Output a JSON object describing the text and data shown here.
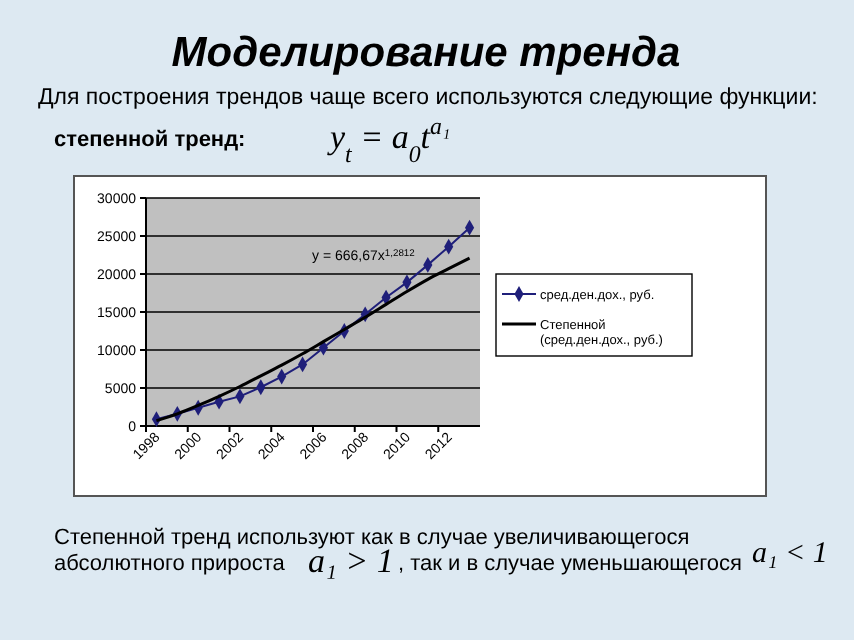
{
  "chart_data": {
    "type": "line",
    "title": "Моделирование тренда",
    "subtitle": "Для построения трендов чаще всего используются следующие функции:",
    "annotations": [
      "степенной тренд:",
      "y$_{t}$ = a$_{0}$t$^{a₁}$",
      "y = 666,67x$^{1,2812}$",
      "Степенной тренд используют как в случае увеличивающегося",
      "абсолютного прироста",
      "a₁ > 1",
      ", так и в случае уменьшающегося",
      "a₁ < 1"
    ],
    "categories": [
      "1998",
      null,
      "2000",
      null,
      "2002",
      null,
      "2004",
      null,
      "2006",
      null,
      "2008",
      null,
      "2010",
      null,
      "2012",
      null
    ],
    "series": [
      {
        "name": "сред.ден.дох., руб.",
        "color": "#1f1f7a",
        "marker": "diamond",
        "values": [
          900,
          1600,
          2400,
          3200,
          3900,
          5100,
          6500,
          8100,
          10300,
          12500,
          14700,
          16900,
          18900,
          21200,
          23600,
          26100
        ]
      },
      {
        "name": "Степенной (сред.ден.дох., руб.)",
        "color": "#000000",
        "marker": "none",
        "values": [
          700,
          1600,
          2700,
          3900,
          5200,
          6600,
          8000,
          9500,
          11100,
          12700,
          14300,
          16000,
          17700,
          19300,
          20700,
          22100
        ]
      }
    ],
    "ylim": [
      0,
      30000
    ],
    "yticks": [
      0,
      5000,
      10000,
      15000,
      20000,
      25000,
      30000
    ],
    "grid": "y",
    "legend": "right"
  }
}
